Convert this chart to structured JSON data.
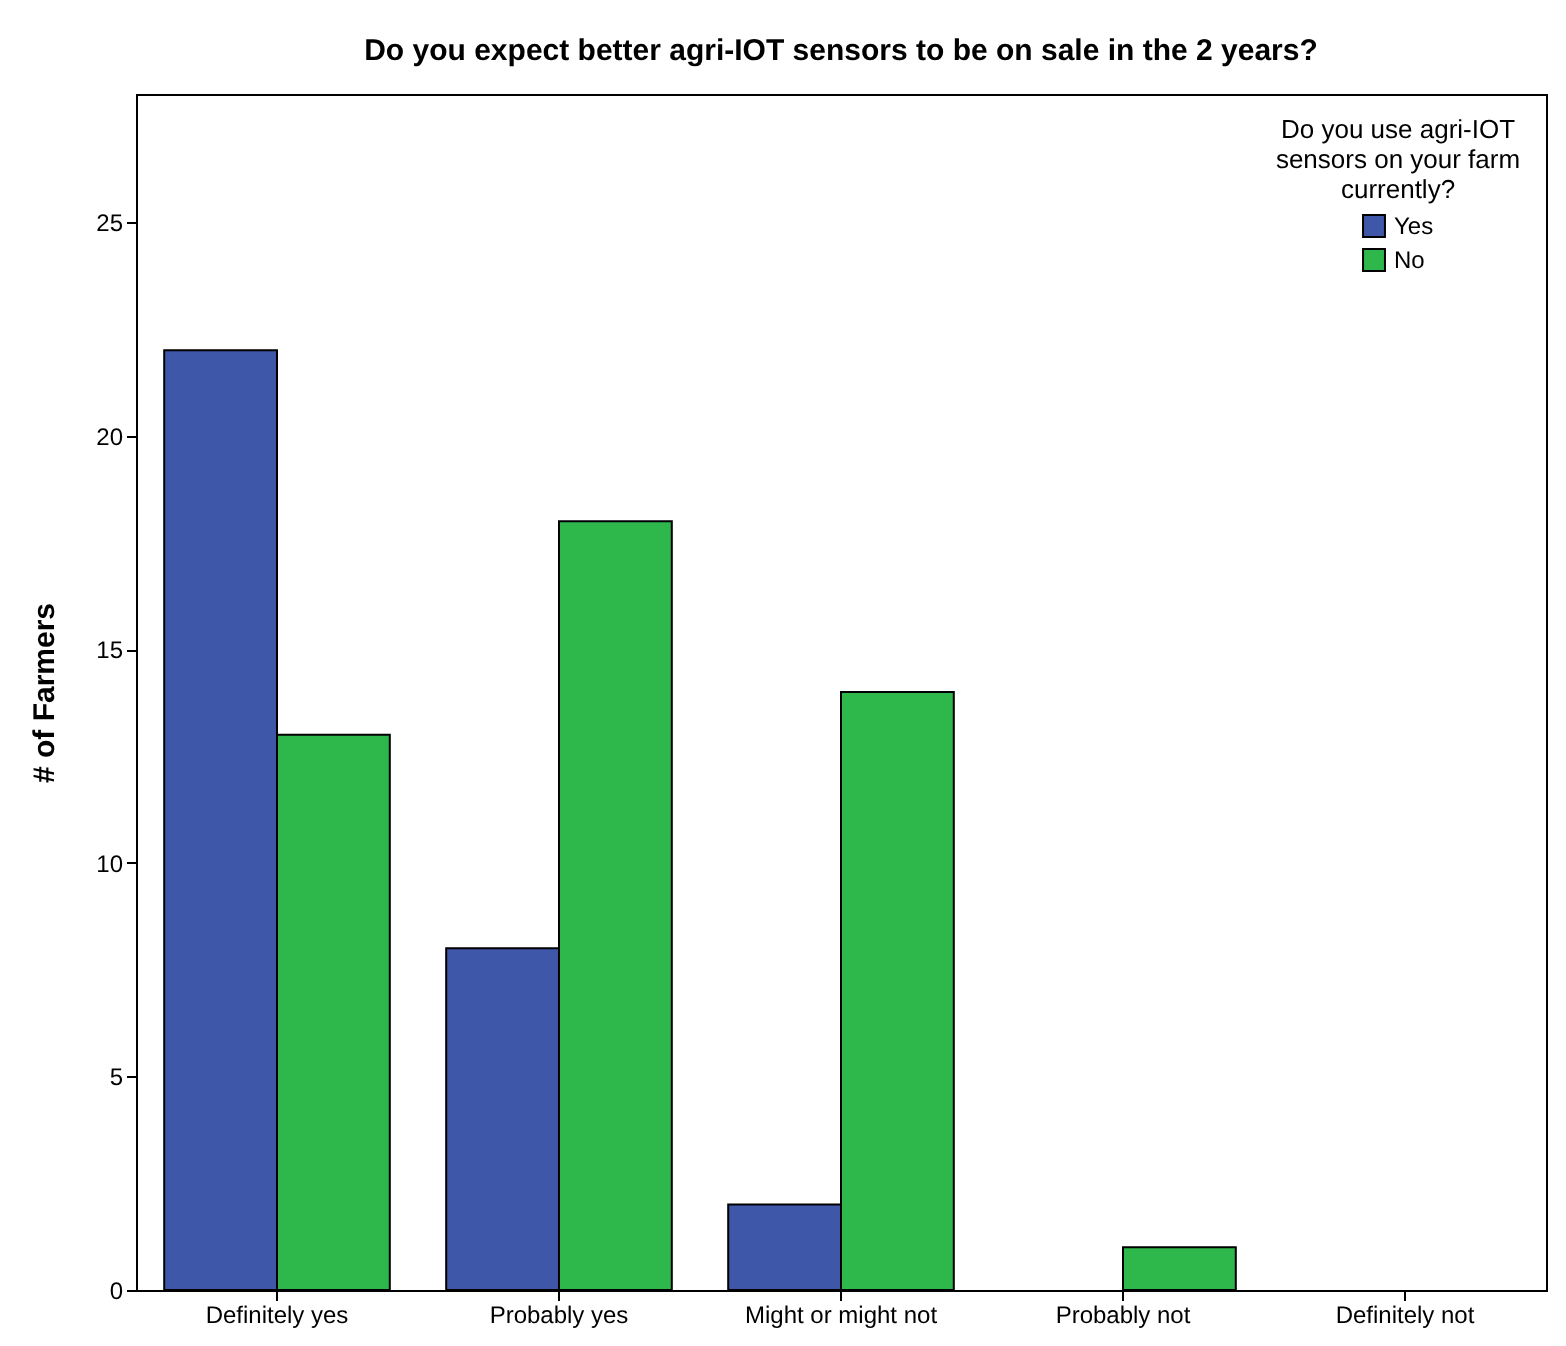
{
  "chart_data": {
    "type": "bar",
    "title": "Do you expect better agri-IOT sensors to be on sale in the 2 years?",
    "ylabel": "# of Farmers",
    "legend_title": "Do you use agri-IOT sensors on your farm currently?",
    "categories": [
      "Definitely yes",
      "Probably yes",
      "Might or might not",
      "Probably not",
      "Definitely not"
    ],
    "series": [
      {
        "name": "Yes",
        "color": "#3e57a9",
        "values": [
          22,
          8,
          2,
          null,
          null
        ]
      },
      {
        "name": "No",
        "color": "#2eb84b",
        "values": [
          13,
          18,
          14,
          1,
          null
        ]
      }
    ],
    "ylim": [
      0,
      28
    ],
    "yticks": [
      0,
      5,
      10,
      15,
      20,
      25
    ],
    "grid": false,
    "legend": "top right"
  }
}
